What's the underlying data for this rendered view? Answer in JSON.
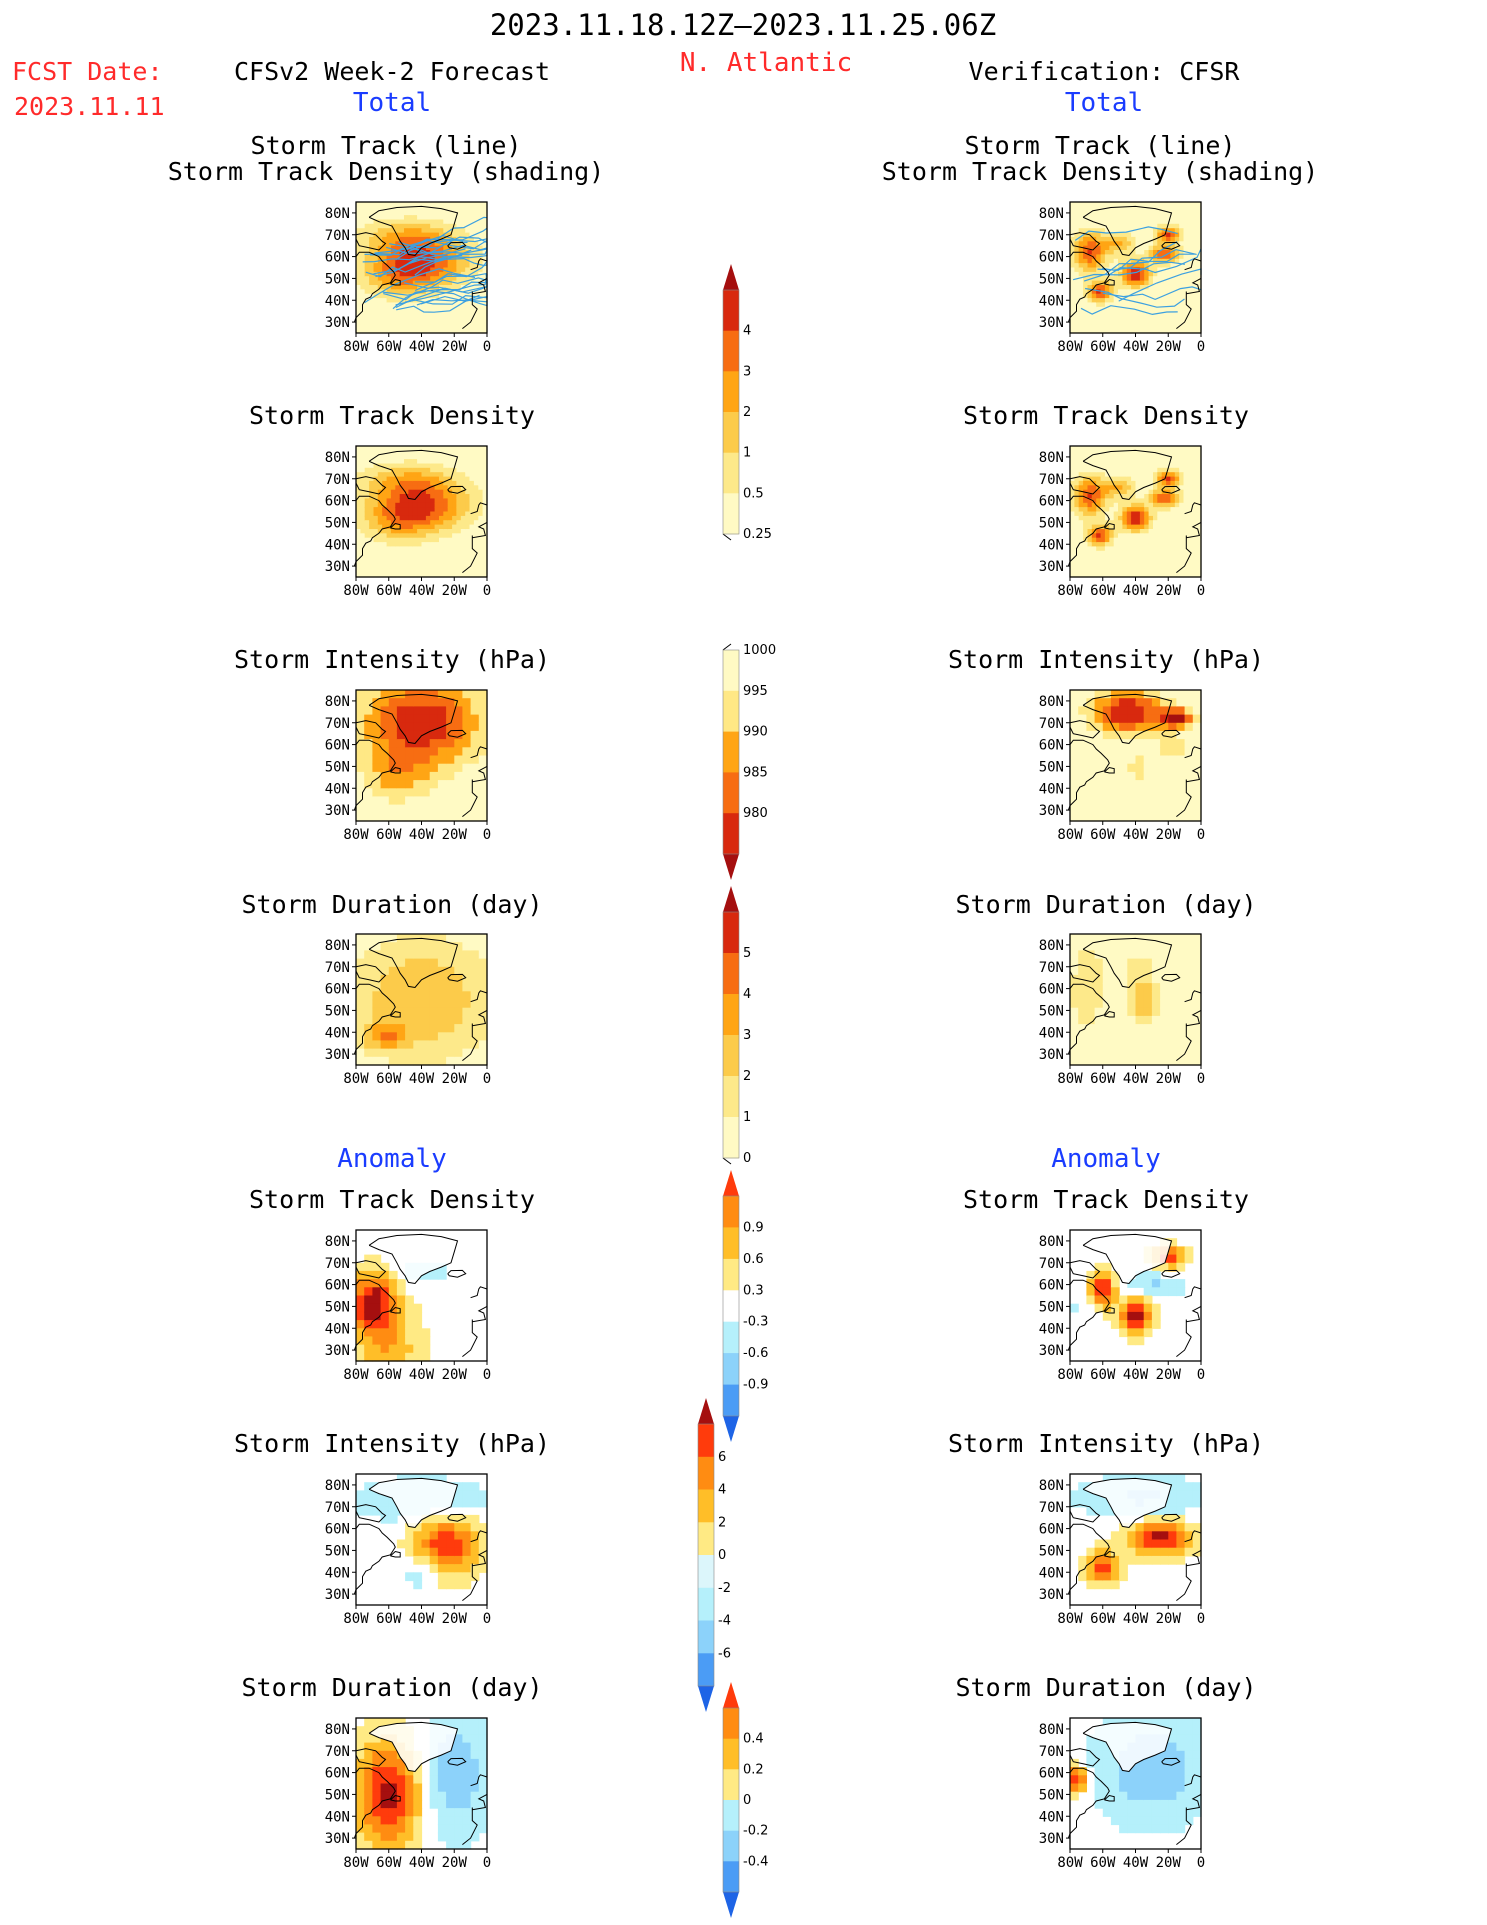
{
  "header": {
    "period": "2023.11.18.12Z—2023.11.25.06Z",
    "region": "N. Atlantic",
    "fcst_label": "FCST Date:",
    "fcst_date": "2023.11.11",
    "left_title": "CFSv2 Week-2 Forecast",
    "right_title": "Verification: CFSR",
    "left_subtitle": "Total",
    "right_subtitle": "Total"
  },
  "sections": {
    "anomaly_left": "Anomaly",
    "anomaly_right": "Anomaly"
  },
  "panel_titles": {
    "track_line": "Storm Track (line)",
    "track_density_shading": "Storm Track Density (shading)",
    "track_density": "Storm Track Density",
    "intensity": "Storm Intensity (hPa)",
    "duration": "Storm Duration (day)"
  },
  "axes": {
    "lat_labels": [
      "80N",
      "70N",
      "60N",
      "50N",
      "40N",
      "30N"
    ],
    "lon_labels": [
      "80W",
      "60W",
      "40W",
      "20W",
      "0"
    ]
  },
  "colorbars": {
    "density_total": {
      "labels": [
        "4",
        "3",
        "2",
        "1",
        "0.5",
        "0.25"
      ],
      "colors": [
        "#a50f0f",
        "#d8290e",
        "#f76d12",
        "#ffa514",
        "#fccb4a",
        "#fde98a",
        "#fffac4"
      ]
    },
    "intensity_total": {
      "labels": [
        "1000",
        "995",
        "990",
        "985",
        "980"
      ],
      "colors": [
        "#fffac4",
        "#ffe885",
        "#ffa514",
        "#f76d12",
        "#d8290e",
        "#a50f0f"
      ]
    },
    "duration_total": {
      "labels": [
        "5",
        "4",
        "3",
        "2",
        "1",
        "0"
      ],
      "colors": [
        "#a50f0f",
        "#d8290e",
        "#f76d12",
        "#ffa514",
        "#fccb4a",
        "#fde98a",
        "#fffac4"
      ]
    },
    "density_anom": {
      "labels": [
        "0.9",
        "0.6",
        "0.3",
        "-0.3",
        "-0.6",
        "-0.9"
      ],
      "colors": [
        "#ff3b0c",
        "#ff8c12",
        "#ffbe28",
        "#ffea84",
        "#ffffff",
        "#b5f0fb",
        "#8cd2fa",
        "#4b9cf5",
        "#1e64e6"
      ]
    },
    "intensity_anom": {
      "labels": [
        "6",
        "4",
        "2",
        "0",
        "-2",
        "-4",
        "-6"
      ],
      "colors": [
        "#a50f0f",
        "#ff3b0c",
        "#ff8c12",
        "#ffbe28",
        "#ffea84",
        "#dcf6fb",
        "#b5f0fb",
        "#8cd2fa",
        "#4b9cf5",
        "#1e64e6"
      ]
    },
    "duration_anom": {
      "labels": [
        "0.4",
        "0.2",
        "0",
        "-0.2",
        "-0.4"
      ],
      "colors": [
        "#ff3b0c",
        "#ff8c12",
        "#ffbe28",
        "#ffea84",
        "#b5f0fb",
        "#8cd2fa",
        "#4b9cf5",
        "#1e64e6"
      ]
    }
  },
  "palette": {
    "text_red": "#ff2a2a",
    "text_blue": "#1a3cff",
    "track_line_color": "#3ca0e0"
  }
}
